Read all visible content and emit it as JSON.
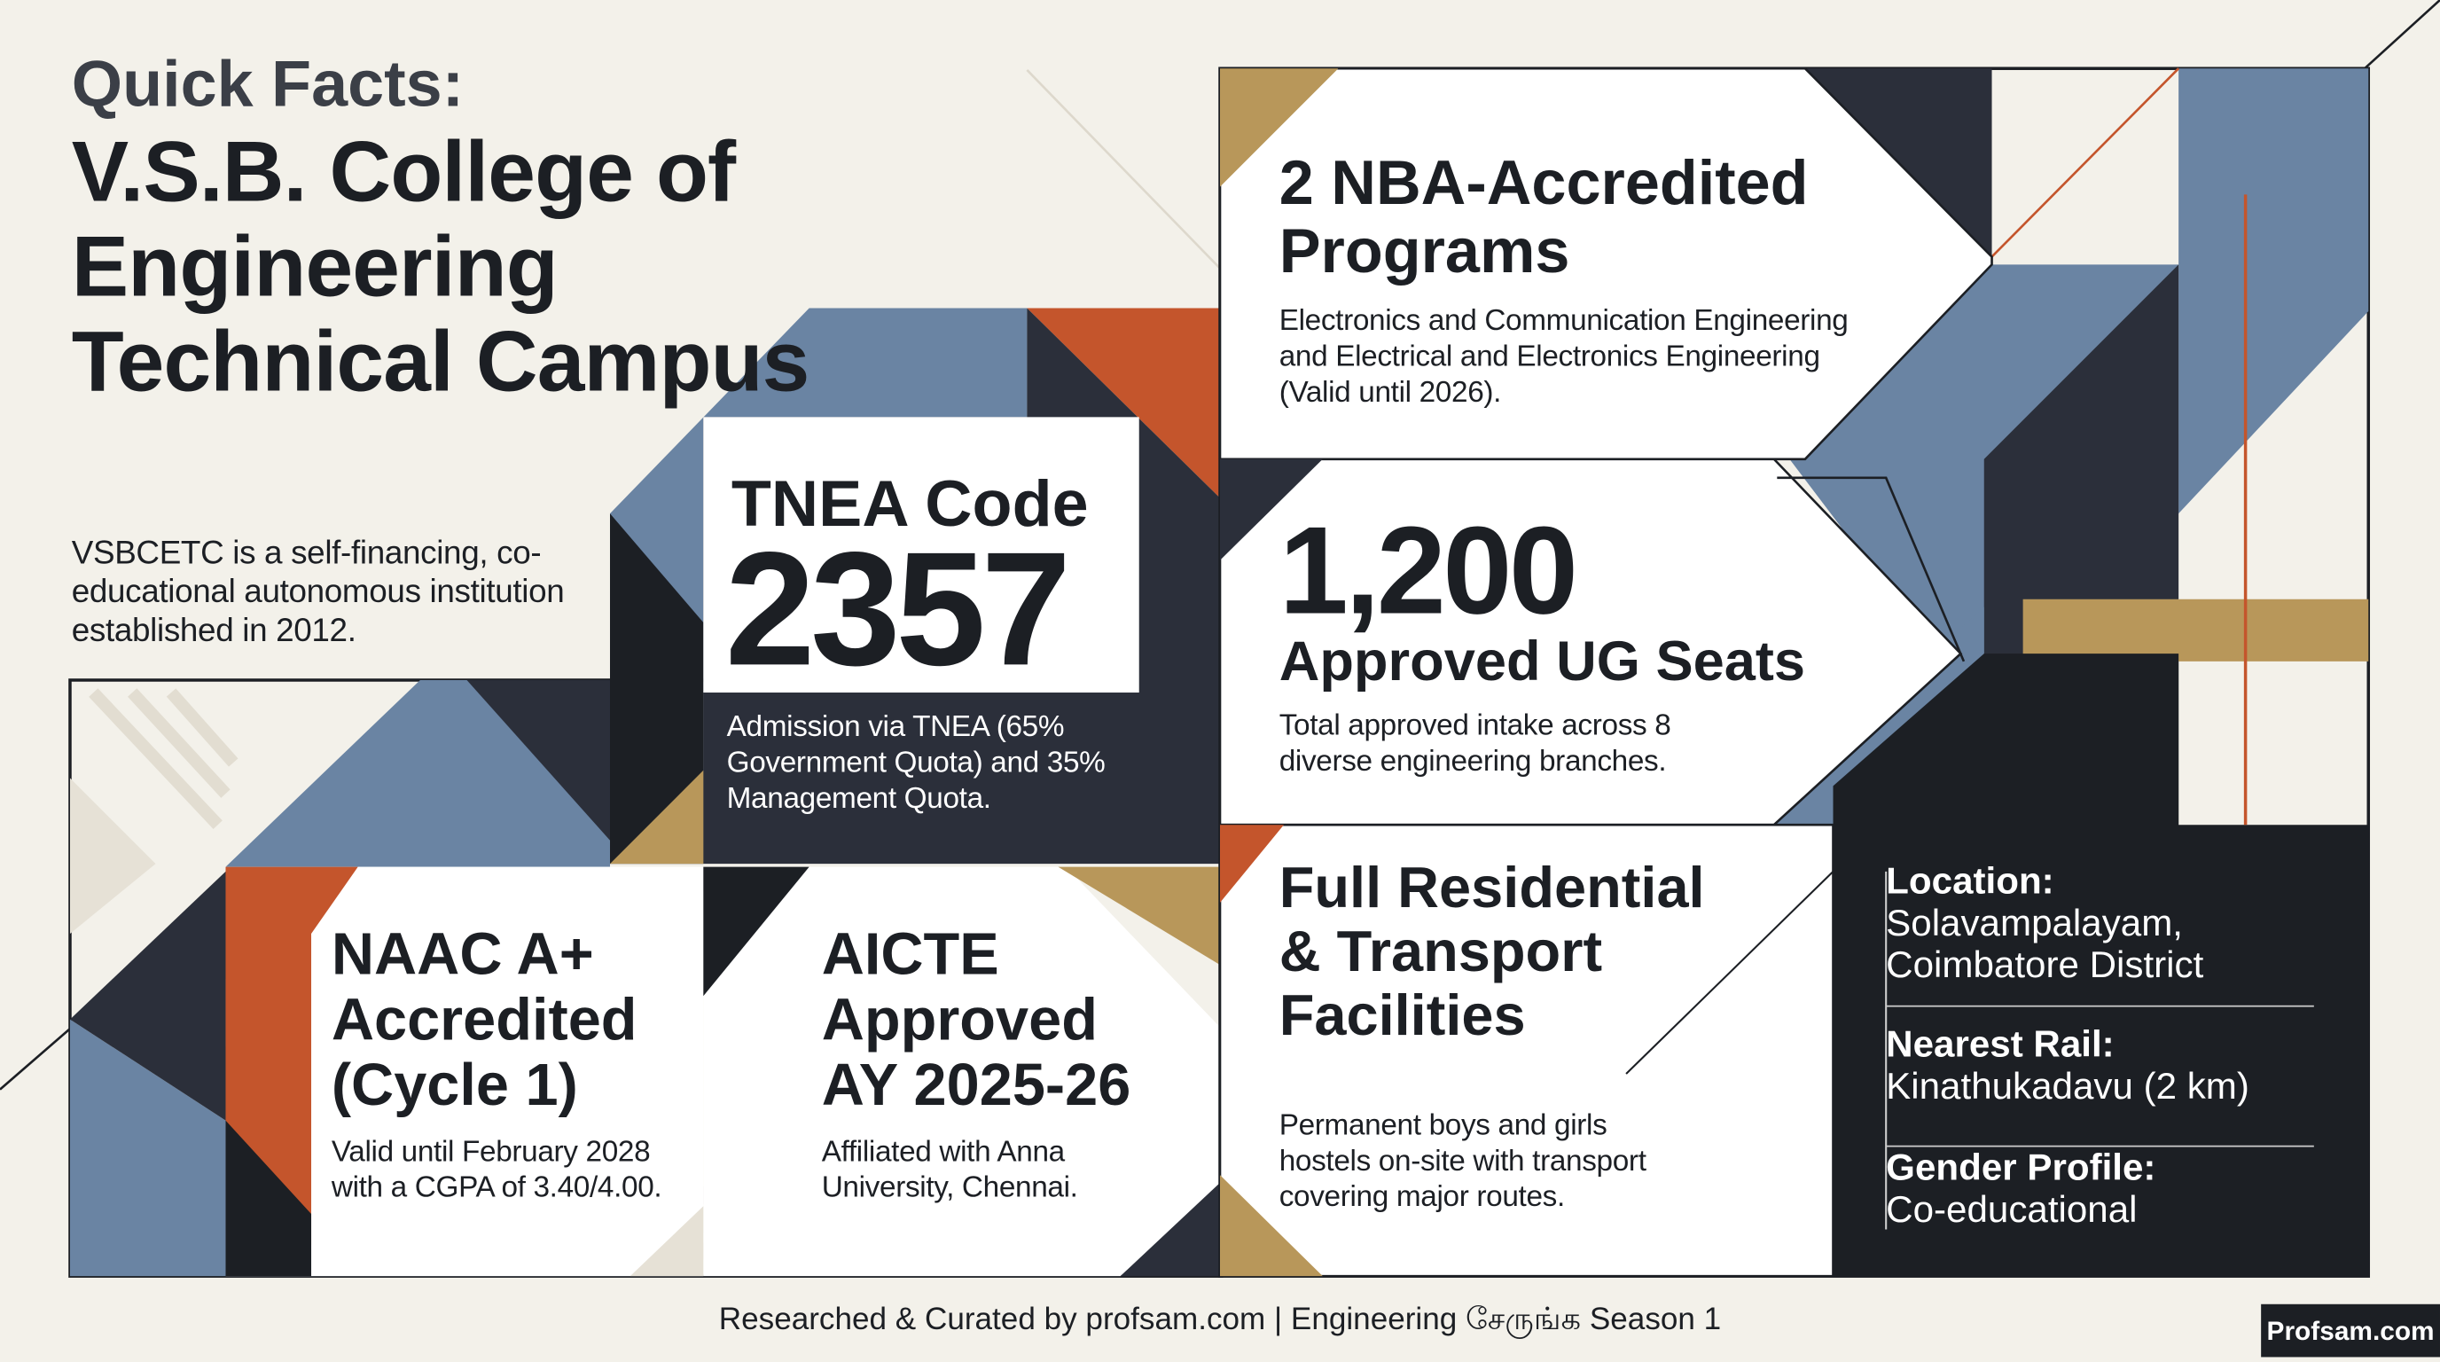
{
  "header": {
    "kicker": "Quick Facts:",
    "title": "V.S.B. College of Engineering Technical Campus",
    "description": "VSBCETC is a self-financing, co-educational autonomous institution established in 2012."
  },
  "tnea": {
    "label": "TNEA Code",
    "code": "2357",
    "description": "Admission via TNEA (65% Government Quota) and 35% Management Quota."
  },
  "nba": {
    "title": "2 NBA-Accredited Programs",
    "description": "Electronics and Communication Engineering and Electrical and Electronics Engineering (Valid until 2026)."
  },
  "seats": {
    "number": "1,200",
    "label": "Approved UG Seats",
    "description": "Total approved intake across 8 diverse engineering branches."
  },
  "naac": {
    "title": "NAAC A+ Accredited (Cycle 1)",
    "description": "Valid until February 2028 with a CGPA of 3.40/4.00."
  },
  "aicte": {
    "title": "AICTE Approved AY 2025-26",
    "description": "Affiliated with Anna University, Chennai."
  },
  "facilities": {
    "title": "Full Residential & Transport Facilities",
    "description": "Permanent boys and girls hostels on-site with transport covering major routes."
  },
  "details": [
    {
      "label": "Location:",
      "value": "Solavampalayam, Coimbatore District"
    },
    {
      "label": "Nearest Rail:",
      "value": "Kinathukadavu (2 km)"
    },
    {
      "label": "Gender Profile:",
      "value": "Co-educational"
    }
  ],
  "footer": {
    "credit": "Researched & Curated by profsam.com | Engineering சேருங்க Season 1",
    "logo": "Profsam.com"
  }
}
